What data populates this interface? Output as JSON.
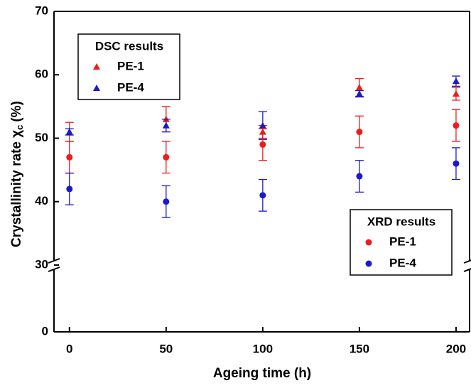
{
  "chart_data": {
    "type": "scatter",
    "x_label": "Ageing time (h)",
    "y_label": "Crystallinity rate χ",
    "y_label_sub": "c",
    "y_label_unit": "(%)",
    "x": [
      0,
      50,
      100,
      150,
      200
    ],
    "xlim": [
      -8,
      207
    ],
    "xticks": [
      0,
      50,
      100,
      150,
      200
    ],
    "ylim": [
      0,
      70
    ],
    "yticks": [
      0,
      30,
      40,
      50,
      60,
      70
    ],
    "ybreak": 30,
    "series_groups": [
      {
        "title": "DSC results",
        "marker": "triangle",
        "legend_position": "upper left",
        "series": [
          {
            "name": "PE-1",
            "color": "#ee1c1c",
            "values": [
              51,
              53,
              51,
              58,
              57
            ],
            "errors": [
              1.5,
              2,
              1,
              1.4,
              1
            ]
          },
          {
            "name": "PE-4",
            "color": "#1a1acc",
            "values": [
              51,
              52,
              52,
              57,
              59
            ],
            "errors": [
              0.5,
              1,
              2.2,
              0.5,
              0.8
            ]
          }
        ]
      },
      {
        "title": "XRD results",
        "marker": "circle",
        "legend_position": "lower right",
        "series": [
          {
            "name": "PE-1",
            "color": "#ee1c1c",
            "values": [
              47,
              47,
              49,
              51,
              52
            ],
            "errors": [
              2.5,
              2.5,
              2.5,
              2.5,
              2.5
            ]
          },
          {
            "name": "PE-4",
            "color": "#1a1acc",
            "values": [
              42,
              40,
              41,
              44,
              46
            ],
            "errors": [
              2.5,
              2.5,
              2.5,
              2.5,
              2.5
            ]
          }
        ]
      }
    ]
  }
}
